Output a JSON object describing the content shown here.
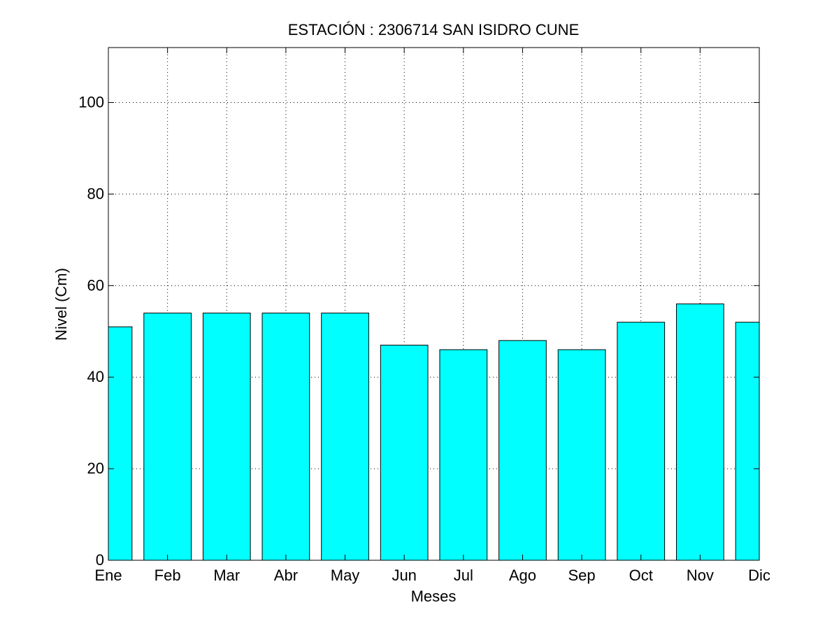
{
  "chart_data": {
    "type": "bar",
    "title": "ESTACIÓN :  2306714  SAN ISIDRO CUNE",
    "xlabel": "Meses",
    "ylabel": "Nivel (Cm)",
    "categories": [
      "Ene",
      "Feb",
      "Mar",
      "Abr",
      "May",
      "Jun",
      "Jul",
      "Ago",
      "Sep",
      "Oct",
      "Nov",
      "Dic"
    ],
    "values": [
      51,
      54,
      54,
      54,
      54,
      47,
      46,
      48,
      46,
      52,
      56,
      52
    ],
    "ylim": [
      0,
      112
    ],
    "yticks": [
      0,
      20,
      40,
      60,
      80,
      100
    ],
    "grid": true,
    "bar_color": "#00ffff",
    "edge_color": "#000000"
  }
}
